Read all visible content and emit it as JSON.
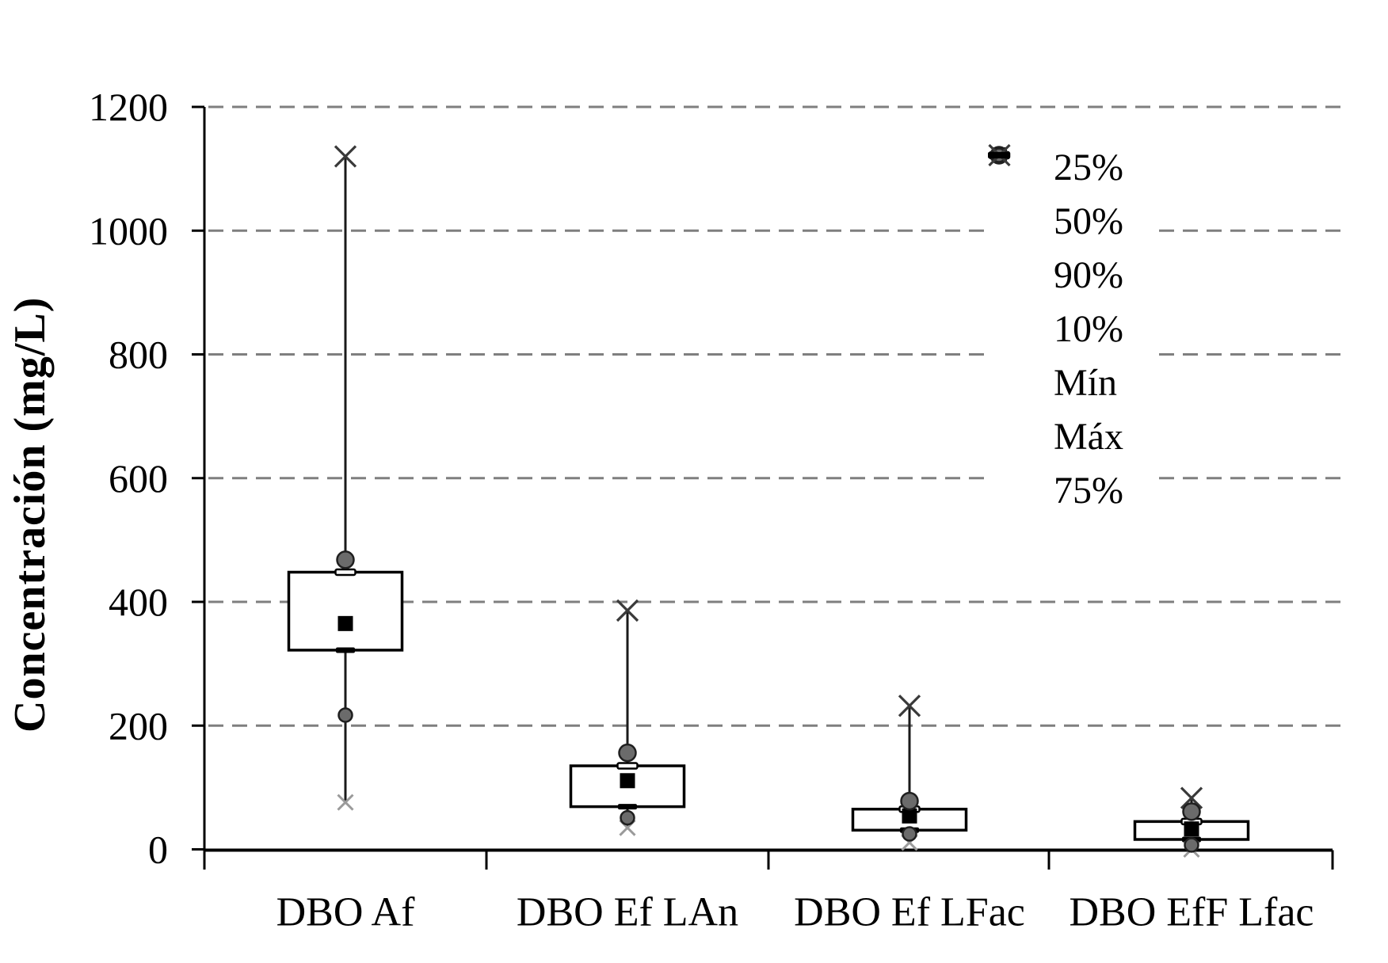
{
  "chart_data": {
    "type": "box",
    "title": "",
    "ylabel": "Concentración (mg/L)",
    "xlabel": "",
    "ylim": [
      0,
      1200
    ],
    "yticks": [
      0,
      200,
      400,
      600,
      800,
      1000,
      1200
    ],
    "grid": "horizontal-dashed",
    "legend_position": "inside-upper-right",
    "categories": [
      "DBO Af",
      "DBO Ef LAn",
      "DBO Ef LFac",
      "DBO EfF Lfac"
    ],
    "legend": [
      {
        "label": "25%",
        "marker": "open-rect"
      },
      {
        "label": "50%",
        "marker": "filled-square"
      },
      {
        "label": "90%",
        "marker": "gray-circle-large"
      },
      {
        "label": "10%",
        "marker": "gray-circle-small"
      },
      {
        "label": "Mín",
        "marker": "x-light"
      },
      {
        "label": "Máx",
        "marker": "x-dark"
      },
      {
        "label": "75%",
        "marker": "filled-bar"
      }
    ],
    "series": [
      {
        "category": "DBO Af",
        "max": 1120,
        "p90": 468,
        "p25_box_top": 448,
        "p50": 365,
        "p75_box_bottom": 322,
        "p10": 217,
        "min": 76
      },
      {
        "category": "DBO Ef LAn",
        "max": 386,
        "p90": 156,
        "p25_box_top": 135,
        "p50": 111,
        "p75_box_bottom": 69,
        "p10": 51,
        "min": 35
      },
      {
        "category": "DBO Ef LFac",
        "max": 232,
        "p90": 78,
        "p25_box_top": 65,
        "p50": 54,
        "p75_box_bottom": 31,
        "p10": 25,
        "min": 11
      },
      {
        "category": "DBO EfF Lfac",
        "max": 83,
        "p90": 61,
        "p25_box_top": 45,
        "p50": 33,
        "p75_box_bottom": 16,
        "p10": 7,
        "min": 0
      }
    ],
    "colors": {
      "axis": "#000000",
      "grid": "#7f7f7f",
      "box_border": "#000000",
      "box_fill": "#ffffff",
      "median": "#000000",
      "circle_fill": "#6b6b6b",
      "circle_stroke": "#1f1f1f",
      "min_x": "#9a9a9a",
      "max_x": "#3a3a3a",
      "bar_75": "#000000",
      "rect_25_fill": "#ffffff",
      "text": "#000000"
    }
  }
}
